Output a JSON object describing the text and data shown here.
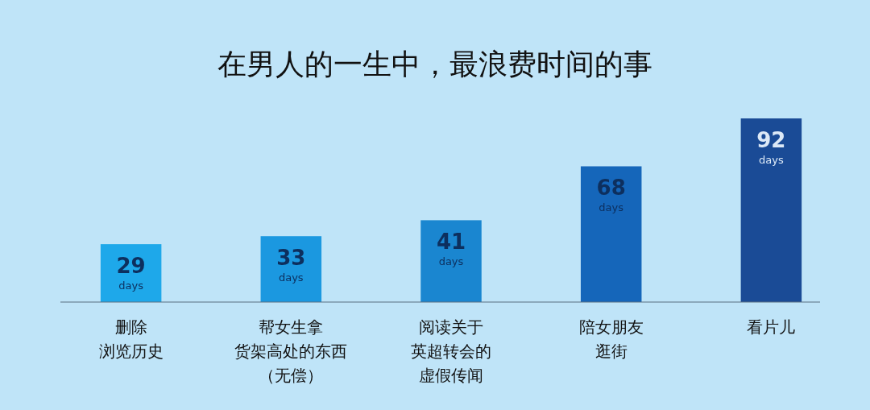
{
  "chart_data": {
    "type": "bar",
    "title": "在男人的一生中，最浪费时间的事",
    "categories": [
      "删除浏览历史",
      "帮女生拿货架高处的东西（无偿）",
      "阅读关于英超转会的虚假传闻",
      "陪女朋友逛街",
      "看片儿"
    ],
    "values": [
      29,
      33,
      41,
      68,
      92
    ],
    "colors": [
      "#1ea8ea",
      "#1b98e0",
      "#1a86d0",
      "#1566ba",
      "#1a4b96"
    ],
    "value_labels": [
      "29 days",
      "33 days",
      "41 days",
      "68 days",
      "92 days"
    ]
  }
}
